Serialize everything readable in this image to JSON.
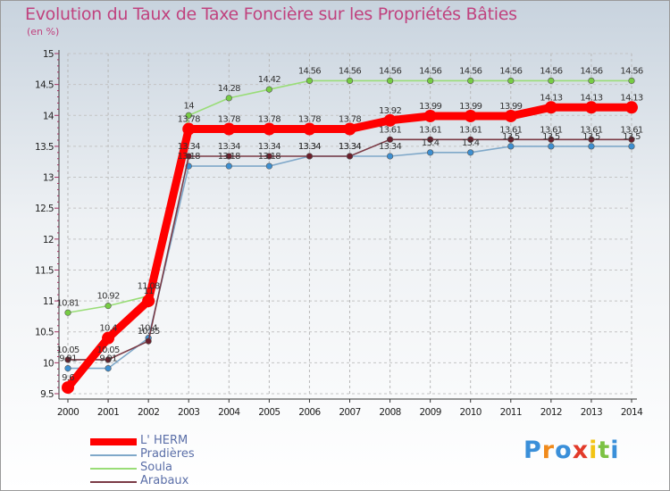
{
  "chart_data": {
    "type": "line",
    "title": "Evolution du Taux de Taxe Foncière sur les Propriétés Bâties",
    "ylabel": "(en %)",
    "xlabel": "",
    "ylim": [
      9.5,
      15
    ],
    "grid": true,
    "legend_position": "bottom-left",
    "x": [
      "2000",
      "2001",
      "2002",
      "2003",
      "2004",
      "2005",
      "2006",
      "2007",
      "2008",
      "2009",
      "2010",
      "2011",
      "2012",
      "2013",
      "2014"
    ],
    "y_ticks": [
      "9.5",
      "10",
      "10.5",
      "11",
      "11.5",
      "12",
      "12.5",
      "13",
      "13.5",
      "14",
      "14.5",
      "15"
    ],
    "series": [
      {
        "name": "L' HERM",
        "color": "#ff0000",
        "stroke": "thick",
        "values": [
          9.6,
          10.4,
          11.0,
          13.78,
          13.78,
          13.78,
          13.78,
          13.78,
          13.92,
          13.99,
          13.99,
          13.99,
          14.13,
          14.13,
          14.13
        ],
        "labels": [
          "9.6",
          "10.4",
          "11",
          "13.78",
          "13.78",
          "13.78",
          "13.78",
          "13.78",
          "13.92",
          "13.99",
          "13.99",
          "13.99",
          "14.13",
          "14.13",
          "14.13"
        ]
      },
      {
        "name": "Pradières",
        "color": "#7fa8c9",
        "stroke": "thin",
        "marker": "#3d8fd1",
        "values": [
          9.91,
          9.91,
          10.4,
          13.18,
          13.18,
          13.18,
          13.34,
          13.34,
          13.34,
          13.4,
          13.4,
          13.5,
          13.5,
          13.5,
          13.5
        ],
        "labels": [
          "9.91",
          "9.91",
          "10.4",
          "13.18",
          "13.18",
          "13.18",
          "13.34",
          "13.34",
          "13.34",
          "13.4",
          "13.4",
          "13.5",
          "13.5",
          "13.5",
          "13.5"
        ]
      },
      {
        "name": "Soula",
        "color": "#99dd77",
        "stroke": "thin",
        "marker": "#77cc44",
        "values": [
          10.81,
          10.92,
          11.08,
          14.0,
          14.28,
          14.42,
          14.56,
          14.56,
          14.56,
          14.56,
          14.56,
          14.56,
          14.56,
          14.56,
          14.56
        ],
        "labels": [
          "10.81",
          "10.92",
          "11.08",
          "14",
          "14.28",
          "14.42",
          "14.56",
          "14.56",
          "14.56",
          "14.56",
          "14.56",
          "14.56",
          "14.56",
          "14.56",
          "14.56"
        ]
      },
      {
        "name": "Arabaux",
        "color": "#7a3a45",
        "stroke": "thin",
        "marker": "#6b1f2c",
        "values": [
          10.05,
          10.05,
          10.35,
          13.34,
          13.34,
          13.34,
          13.34,
          13.34,
          13.61,
          13.61,
          13.61,
          13.61,
          13.61,
          13.61,
          13.61
        ],
        "labels": [
          "10.05",
          "10.05",
          "10.35",
          "13.34",
          "13.34",
          "13.34",
          "13.34",
          "13.34",
          "13.61",
          "13.61",
          "13.61",
          "13.61",
          "13.61",
          "13.61",
          "13.61"
        ]
      }
    ]
  },
  "logo": {
    "letters": [
      "P",
      "r",
      "o",
      "x",
      "i",
      "t",
      "i"
    ],
    "colors": [
      "#3a8fd9",
      "#f08a1c",
      "#3a8fd9",
      "#e23a2a",
      "#f2c414",
      "#7cc243",
      "#3a8fd9"
    ]
  }
}
